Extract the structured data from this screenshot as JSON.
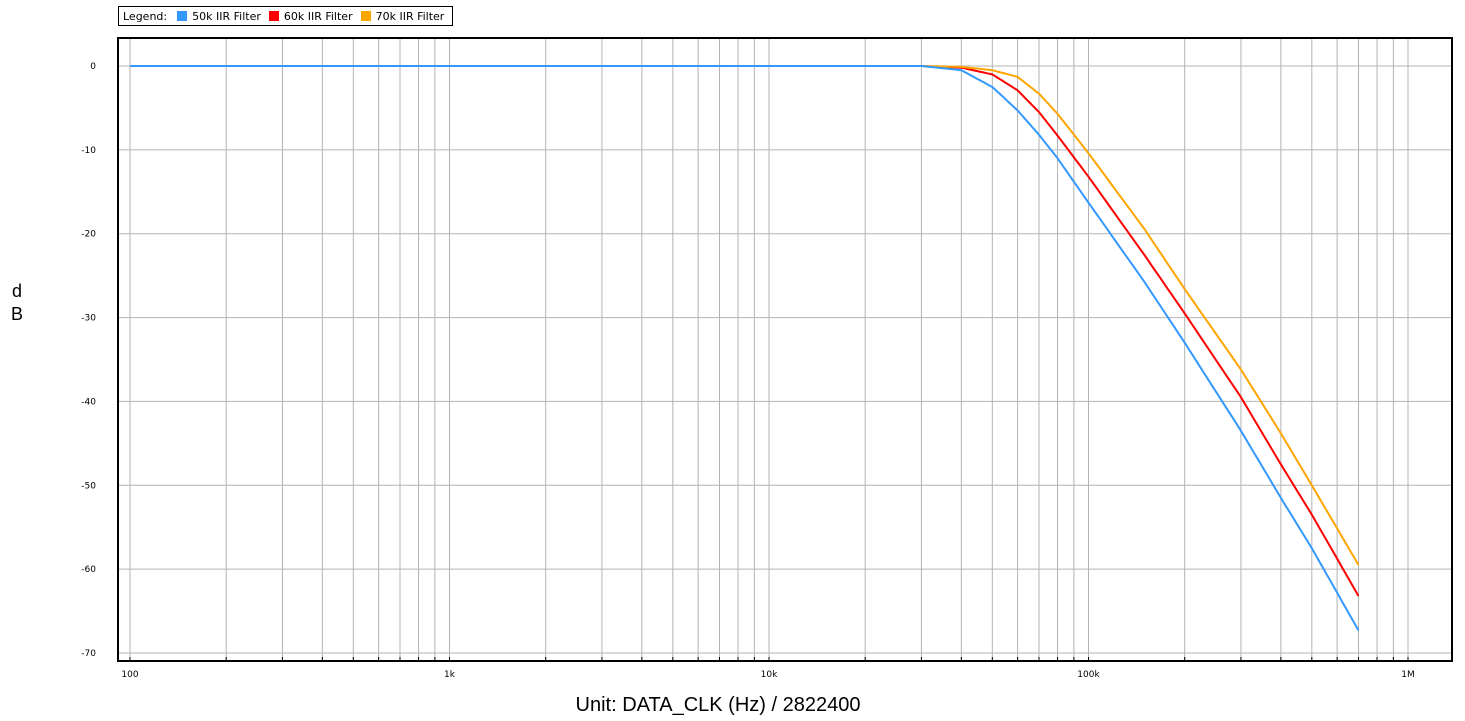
{
  "chart_data": {
    "type": "line",
    "title": "",
    "xlabel": "Unit: DATA_CLK (Hz) / 2822400",
    "ylabel": "dB",
    "x_scale": "log",
    "xlim": [
      100,
      1000000
    ],
    "ylim": [
      -70,
      0
    ],
    "x_ticks": [
      100,
      1000,
      10000,
      100000,
      1000000
    ],
    "x_tick_labels": [
      "100",
      "1k",
      "10k",
      "100k",
      "1M"
    ],
    "y_ticks": [
      0,
      -10,
      -20,
      -30,
      -40,
      -50,
      -60,
      -70
    ],
    "y_tick_labels": [
      "0",
      "-10",
      "-20",
      "-30",
      "-40",
      "-50",
      "-60",
      "-70"
    ],
    "grid": true,
    "legend_title": "Legend:",
    "legend_position": "top-left",
    "series": [
      {
        "name": "50k IIR Filter",
        "color": "#3399ff",
        "x": [
          100,
          1000,
          10000,
          30000,
          40000,
          50000,
          60000,
          70000,
          80000,
          100000,
          150000,
          200000,
          300000,
          400000,
          500000,
          700000
        ],
        "y": [
          0,
          0,
          0,
          0,
          -0.5,
          -2.5,
          -5.3,
          -8.2,
          -11.0,
          -16.3,
          -25.8,
          -33.0,
          -43.5,
          -51.5,
          -57.5,
          -67.3
        ]
      },
      {
        "name": "60k IIR Filter",
        "color": "#ff0000",
        "x": [
          100,
          1000,
          10000,
          30000,
          40000,
          50000,
          60000,
          70000,
          80000,
          100000,
          150000,
          200000,
          300000,
          400000,
          500000,
          700000
        ],
        "y": [
          0,
          0,
          0,
          0,
          -0.2,
          -1.0,
          -2.9,
          -5.5,
          -8.3,
          -13.2,
          -22.6,
          -29.5,
          -39.5,
          -47.5,
          -53.5,
          -63.2
        ]
      },
      {
        "name": "70k IIR Filter",
        "color": "#ffa500",
        "x": [
          100,
          1000,
          10000,
          30000,
          40000,
          50000,
          60000,
          70000,
          80000,
          100000,
          150000,
          200000,
          300000,
          400000,
          500000,
          700000
        ],
        "y": [
          0,
          0,
          0,
          0,
          -0.1,
          -0.5,
          -1.3,
          -3.3,
          -5.7,
          -10.4,
          -19.5,
          -26.6,
          -36.2,
          -43.8,
          -50.0,
          -59.5
        ]
      }
    ]
  }
}
